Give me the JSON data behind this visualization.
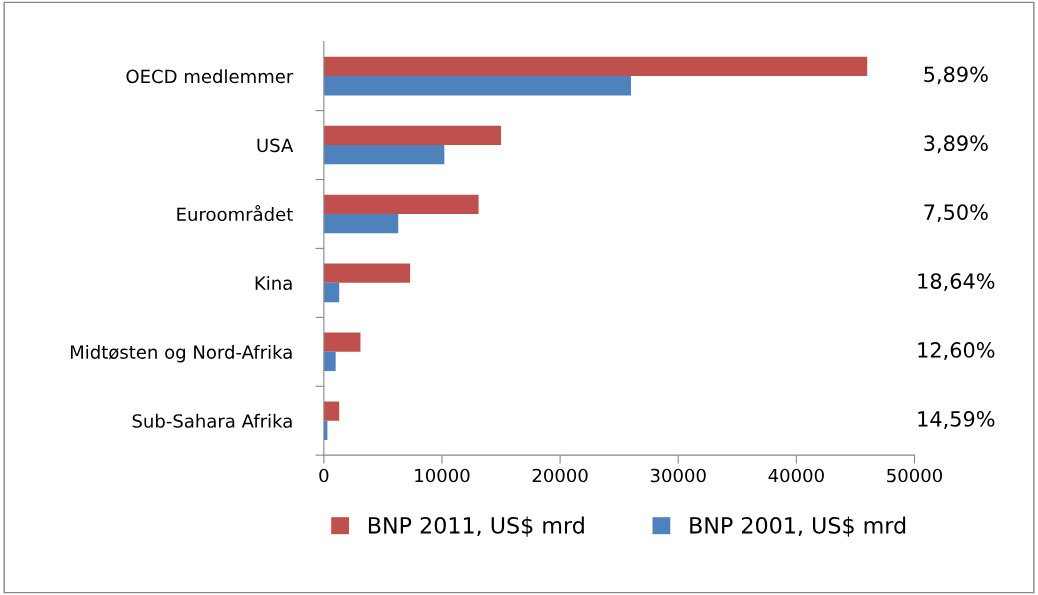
{
  "chart_data": {
    "type": "bar",
    "orientation": "horizontal",
    "categories": [
      "OECD medlemmer",
      "USA",
      "Euroområdet",
      "Kina",
      "Midtøsten og Nord-Afrika",
      "Sub-Sahara Afrika"
    ],
    "series": [
      {
        "name": "BNP 2011, US$ mrd",
        "color": "#c0504d",
        "values": [
          46000,
          15000,
          13100,
          7300,
          3100,
          1300
        ]
      },
      {
        "name": "BNP 2001, US$ mrd",
        "color": "#4f81bd",
        "values": [
          26000,
          10200,
          6300,
          1300,
          1000,
          300
        ]
      }
    ],
    "xlim": [
      0,
      50000
    ],
    "xticks": [
      0,
      10000,
      20000,
      30000,
      40000,
      50000
    ],
    "annotations": [
      "5,89%",
      "3,89%",
      "7,50%",
      "18,64%",
      "12,60%",
      "14,59%"
    ],
    "grid": false,
    "legend": "bottom"
  }
}
